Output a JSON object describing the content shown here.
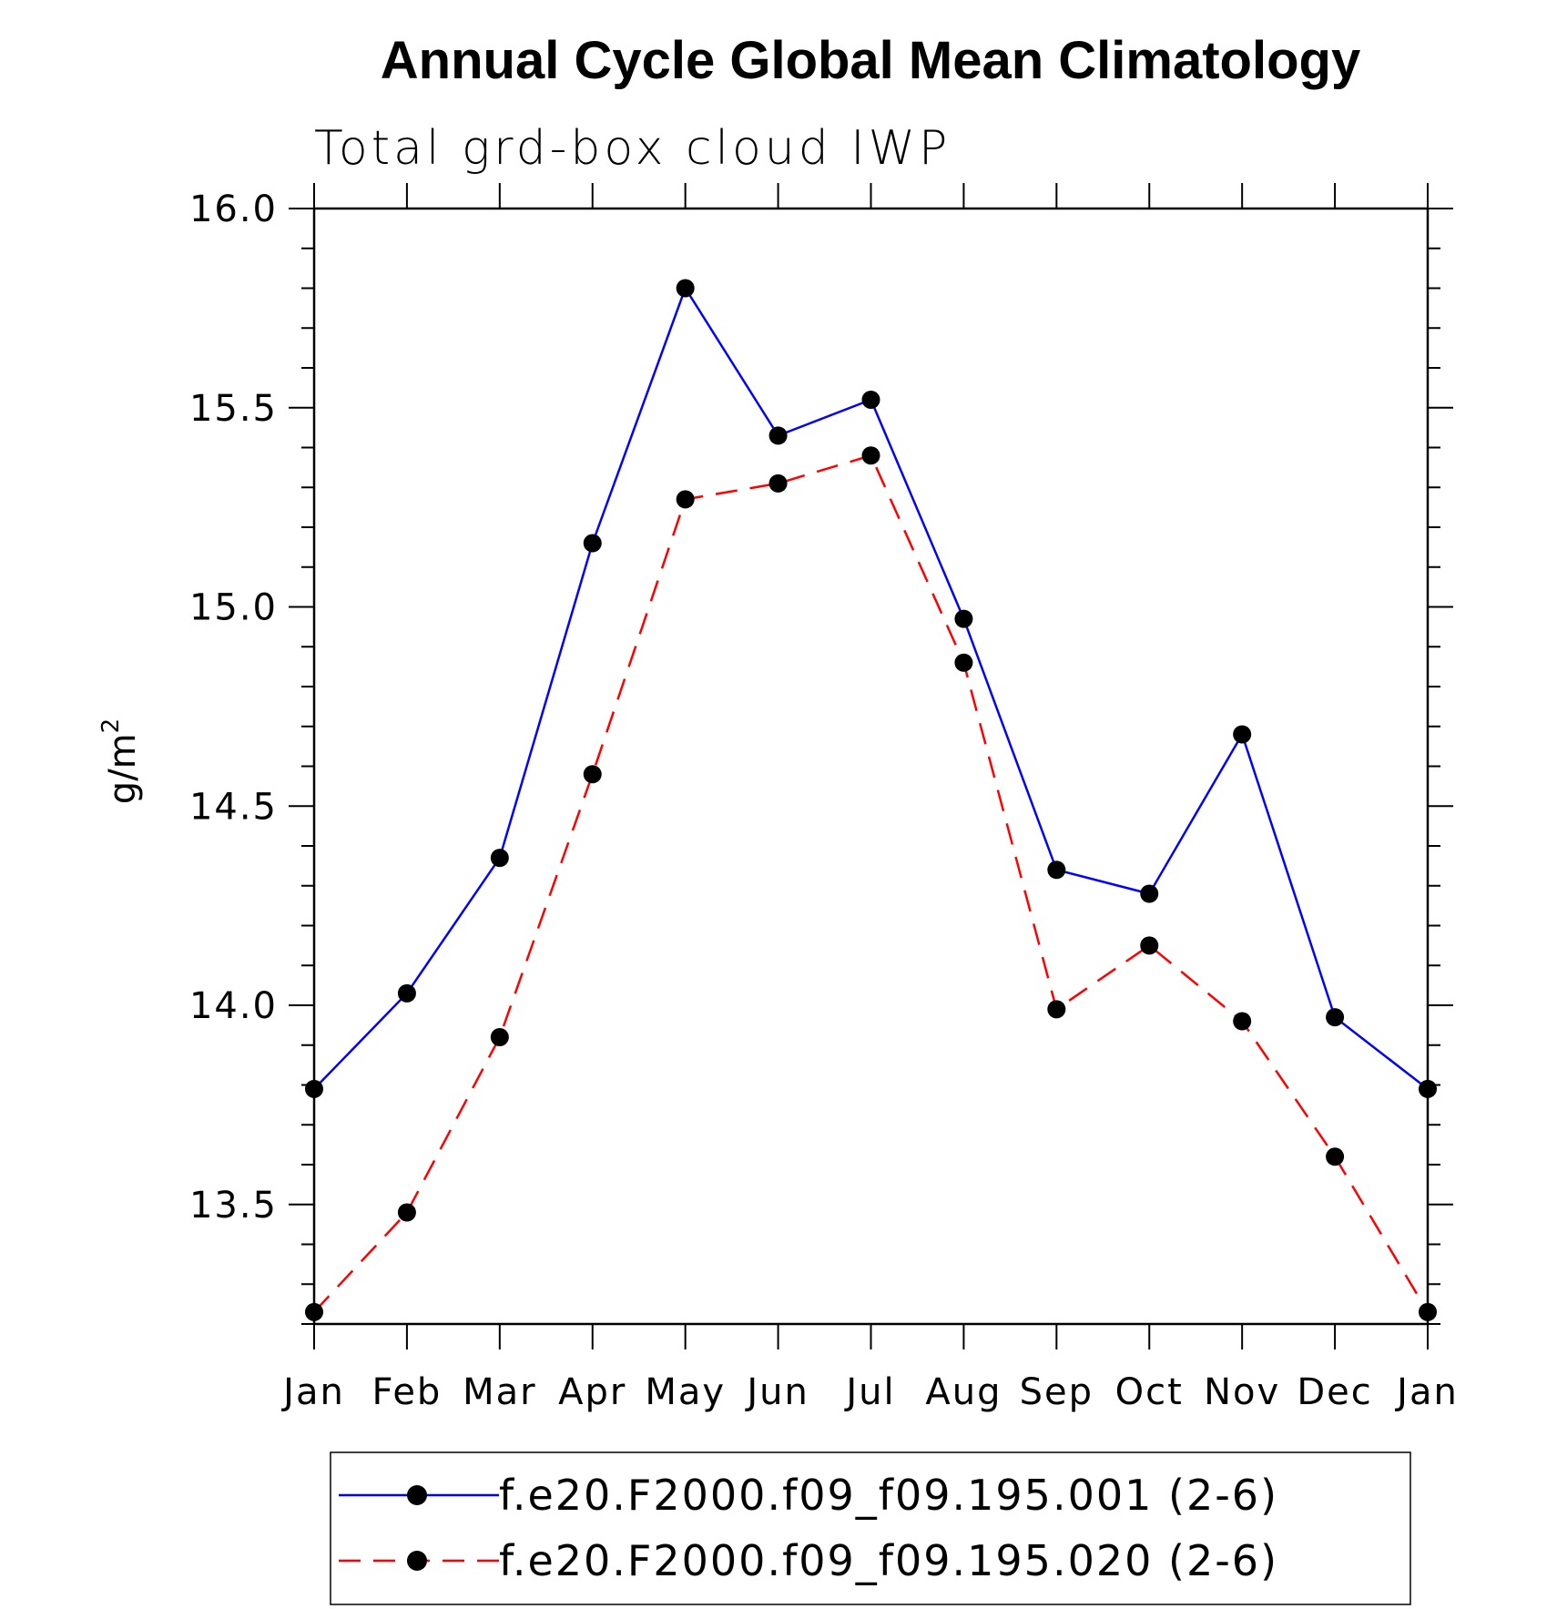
{
  "chart_data": {
    "type": "line",
    "title": "Annual Cycle Global Mean Climatology",
    "subtitle": "Total grd-box cloud IWP",
    "ylabel": "g/m",
    "ylabel_sup": "2",
    "xlabel": "",
    "categories": [
      "Jan",
      "Feb",
      "Mar",
      "Apr",
      "May",
      "Jun",
      "Jul",
      "Aug",
      "Sep",
      "Oct",
      "Nov",
      "Dec",
      "Jan"
    ],
    "ylim": [
      13.2,
      16.0
    ],
    "yticks": [
      "13.5",
      "14.0",
      "14.5",
      "15.0",
      "15.5",
      "16.0"
    ],
    "grid": false,
    "legend_position": "bottom",
    "series": [
      {
        "name": "f.e20.F2000.f09_f09.195.001 (2-6)",
        "color": "#0000ff",
        "dash": "solid",
        "values": [
          13.79,
          14.03,
          14.37,
          15.16,
          15.8,
          15.43,
          15.52,
          14.97,
          14.34,
          14.28,
          14.68,
          13.97,
          13.79
        ]
      },
      {
        "name": "f.e20.F2000.f09_f09.195.020 (2-6)",
        "color": "#ff0000",
        "dash": "dashed",
        "values": [
          13.23,
          13.48,
          13.92,
          14.58,
          15.27,
          15.31,
          15.38,
          14.86,
          13.99,
          14.15,
          13.96,
          13.62,
          13.23
        ]
      }
    ]
  }
}
